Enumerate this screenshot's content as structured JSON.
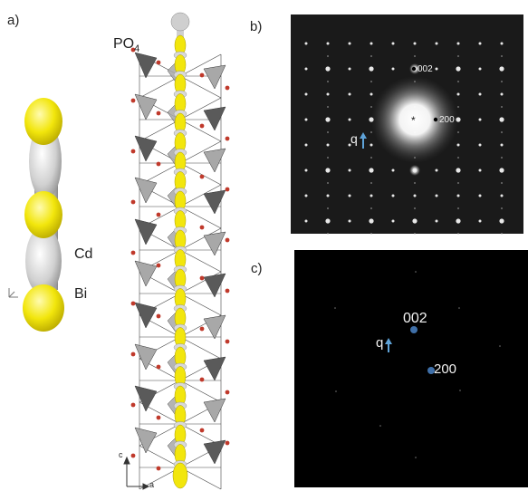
{
  "panels": {
    "a": {
      "label": "a)"
    },
    "b": {
      "label": "b)"
    },
    "c": {
      "label": "c)"
    }
  },
  "chain_labels": {
    "cd": "Cd",
    "bi": "Bi",
    "po4_main": "PO",
    "po4_sub": "4"
  },
  "axes": {
    "c": "c",
    "a": "a"
  },
  "diffraction_b": {
    "spot_002": "002",
    "spot_200": "200",
    "center": "*",
    "q": "q"
  },
  "diffraction_c": {
    "spot_002": "002",
    "spot_200": "200",
    "q": "q"
  },
  "colors": {
    "bi": "#f2e60c",
    "cd": "#d4d4d4",
    "oxygen": "#c0392b",
    "tetrahedron_dark": "#5a5a5a",
    "tetrahedron_light": "#a8a8a8",
    "q_arrow": "#5fa3d8",
    "spot_blue": "#3f6fa8"
  }
}
